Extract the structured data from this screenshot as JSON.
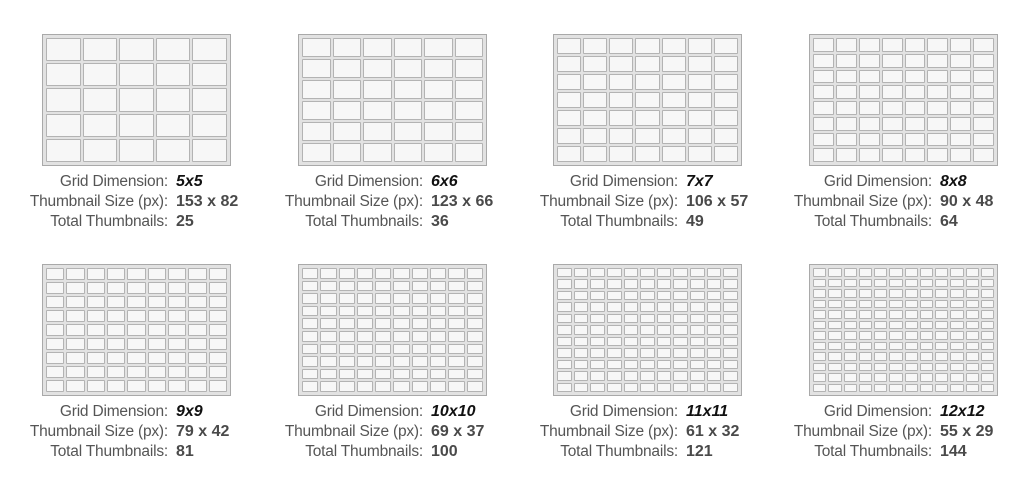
{
  "labels": {
    "grid_dimension": "Grid Dimension:",
    "thumbnail_size": "Thumbnail Size (px):",
    "total_thumbnails": "Total Thumbnails:"
  },
  "colors": {
    "frame_border": "#a9a9a9",
    "frame_fill": "#e2e2e2",
    "cell_fill": "#f7f7f7",
    "cell_border": "#b3b3b3",
    "dimension_text": "#111111"
  },
  "grids": [
    {
      "n": 5,
      "dimension": "5x5",
      "thumbnail_size": "153 x 82",
      "total": "25"
    },
    {
      "n": 6,
      "dimension": "6x6",
      "thumbnail_size": "123 x 66",
      "total": "36"
    },
    {
      "n": 7,
      "dimension": "7x7",
      "thumbnail_size": "106 x 57",
      "total": "49"
    },
    {
      "n": 8,
      "dimension": "8x8",
      "thumbnail_size": "90 x 48",
      "total": "64"
    },
    {
      "n": 9,
      "dimension": "9x9",
      "thumbnail_size": "79 x 42",
      "total": "81"
    },
    {
      "n": 10,
      "dimension": "10x10",
      "thumbnail_size": "69 x 37",
      "total": "100"
    },
    {
      "n": 11,
      "dimension": "11x11",
      "thumbnail_size": "61 x 32",
      "total": "121"
    },
    {
      "n": 12,
      "dimension": "12x12",
      "thumbnail_size": "55 x 29",
      "total": "144"
    }
  ]
}
